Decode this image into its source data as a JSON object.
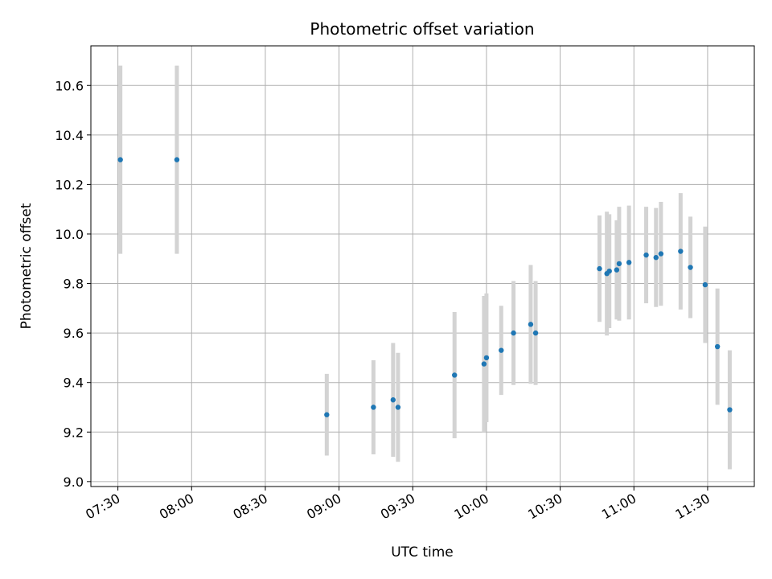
{
  "chart_data": {
    "type": "scatter",
    "title": "Photometric offset variation",
    "xlabel": "UTC time",
    "ylabel": "Photometric offset",
    "x_ticks": [
      "07:30",
      "08:00",
      "08:30",
      "09:00",
      "09:30",
      "10:00",
      "10:30",
      "11:00",
      "11:30"
    ],
    "y_ticks": [
      "9.0",
      "9.2",
      "9.4",
      "9.6",
      "9.8",
      "10.0",
      "10.2",
      "10.4",
      "10.6"
    ],
    "xlim": [
      "07:19",
      "11:49"
    ],
    "ylim": [
      8.98,
      10.76
    ],
    "grid": true,
    "colors": {
      "point": "#1f77b4",
      "errorbar": "#d3d3d3",
      "grid": "#b0b0b0"
    },
    "points": [
      {
        "x": "07:31",
        "y": 10.3,
        "yerr": 0.38
      },
      {
        "x": "07:54",
        "y": 10.3,
        "yerr": 0.38
      },
      {
        "x": "08:55",
        "y": 9.27,
        "yerr": 0.165
      },
      {
        "x": "09:14",
        "y": 9.3,
        "yerr": 0.19
      },
      {
        "x": "09:22",
        "y": 9.33,
        "yerr": 0.23
      },
      {
        "x": "09:24",
        "y": 9.3,
        "yerr": 0.22
      },
      {
        "x": "09:47",
        "y": 9.43,
        "yerr": 0.255
      },
      {
        "x": "09:59",
        "y": 9.475,
        "yerr": 0.275
      },
      {
        "x": "10:00",
        "y": 9.5,
        "yerr": 0.26
      },
      {
        "x": "10:06",
        "y": 9.53,
        "yerr": 0.18
      },
      {
        "x": "10:11",
        "y": 9.6,
        "yerr": 0.21
      },
      {
        "x": "10:18",
        "y": 9.635,
        "yerr": 0.24
      },
      {
        "x": "10:20",
        "y": 9.6,
        "yerr": 0.21
      },
      {
        "x": "10:46",
        "y": 9.86,
        "yerr": 0.215
      },
      {
        "x": "10:49",
        "y": 9.84,
        "yerr": 0.25
      },
      {
        "x": "10:50",
        "y": 9.85,
        "yerr": 0.23
      },
      {
        "x": "10:53",
        "y": 9.855,
        "yerr": 0.2
      },
      {
        "x": "10:54",
        "y": 9.88,
        "yerr": 0.23
      },
      {
        "x": "10:58",
        "y": 9.885,
        "yerr": 0.23
      },
      {
        "x": "11:05",
        "y": 9.915,
        "yerr": 0.195
      },
      {
        "x": "11:09",
        "y": 9.905,
        "yerr": 0.2
      },
      {
        "x": "11:11",
        "y": 9.92,
        "yerr": 0.21
      },
      {
        "x": "11:19",
        "y": 9.93,
        "yerr": 0.235
      },
      {
        "x": "11:23",
        "y": 9.865,
        "yerr": 0.205
      },
      {
        "x": "11:29",
        "y": 9.795,
        "yerr": 0.235
      },
      {
        "x": "11:34",
        "y": 9.545,
        "yerr": 0.235
      },
      {
        "x": "11:39",
        "y": 9.29,
        "yerr": 0.24
      }
    ]
  }
}
